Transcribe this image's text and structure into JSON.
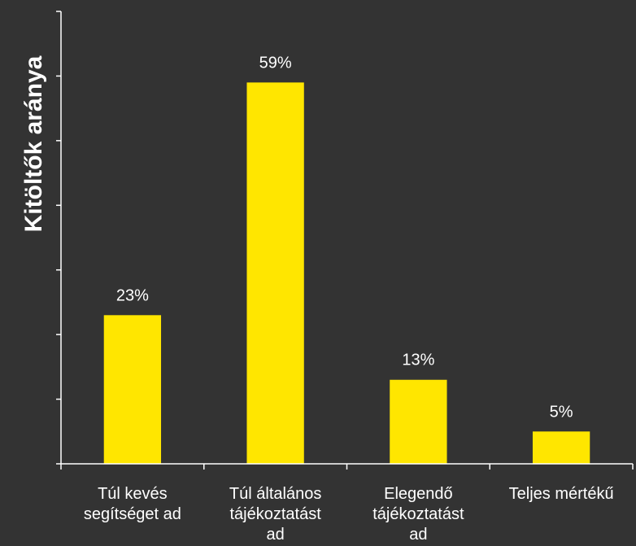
{
  "chart_data": {
    "type": "bar",
    "title": "",
    "xlabel": "",
    "ylabel": "Kitöltők aránya",
    "categories": [
      [
        "Túl kevés",
        "segítséget ad"
      ],
      [
        "Túl általános",
        "tájékoztatást",
        "ad"
      ],
      [
        "Elegendő",
        "tájékoztatást",
        "ad"
      ],
      [
        "Teljes mértékű"
      ]
    ],
    "values": [
      23,
      59,
      13,
      5
    ],
    "value_labels": [
      "23%",
      "59%",
      "13%",
      "5%"
    ],
    "ylim": [
      0,
      70
    ],
    "y_tick_step": 10,
    "y_tick_labels_shown": false,
    "grid": false,
    "legend": "none",
    "bar_color": "#FFE600",
    "background_color": "#333333",
    "text_color": "#FFFFFF"
  }
}
